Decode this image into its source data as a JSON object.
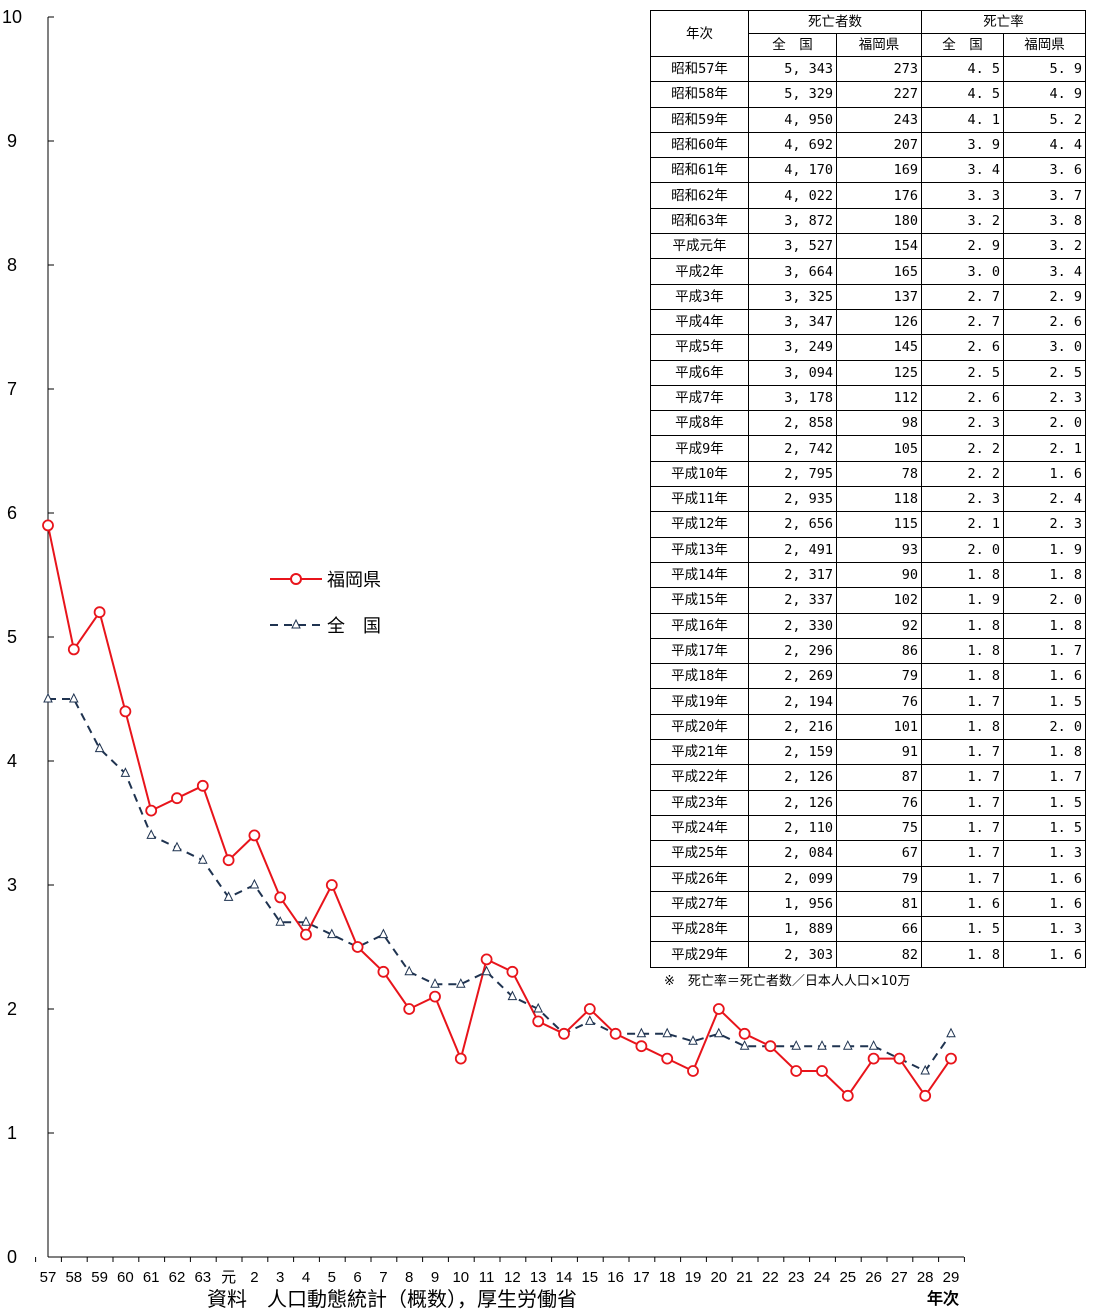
{
  "chart_data": {
    "type": "line",
    "ylim": [
      0,
      10
    ],
    "yticks": [
      "0",
      "1",
      "2",
      "3",
      "4",
      "5",
      "6",
      "7",
      "8",
      "9",
      "10"
    ],
    "categories": [
      "57",
      "58",
      "59",
      "60",
      "61",
      "62",
      "63",
      "元",
      "2",
      "3",
      "4",
      "5",
      "6",
      "7",
      "8",
      "9",
      "10",
      "11",
      "12",
      "13",
      "14",
      "15",
      "16",
      "17",
      "18",
      "19",
      "20",
      "21",
      "22",
      "23",
      "24",
      "25",
      "26",
      "27",
      "28",
      "29"
    ],
    "series": [
      {
        "name": "福岡県",
        "color": "#e8141b",
        "style": "solid",
        "marker": "circle",
        "values": [
          5.9,
          4.9,
          5.2,
          4.4,
          3.6,
          3.7,
          3.8,
          3.2,
          3.4,
          2.9,
          2.6,
          3.0,
          2.5,
          2.3,
          2.0,
          2.1,
          1.6,
          2.4,
          2.3,
          1.9,
          1.8,
          2.0,
          1.8,
          1.7,
          1.6,
          1.5,
          2.0,
          1.8,
          1.7,
          1.5,
          1.5,
          1.3,
          1.6,
          1.6,
          1.3,
          1.6
        ]
      },
      {
        "name": "全　国",
        "color": "#1f3350",
        "style": "dashed",
        "marker": "triangle",
        "values": [
          4.5,
          4.5,
          4.1,
          3.9,
          3.4,
          3.3,
          3.2,
          2.9,
          3.0,
          2.7,
          2.7,
          2.6,
          2.5,
          2.6,
          2.3,
          2.2,
          2.2,
          2.3,
          2.1,
          2.0,
          1.8,
          1.9,
          1.8,
          1.8,
          1.8,
          1.74,
          1.8,
          1.7,
          1.7,
          1.7,
          1.7,
          1.7,
          1.7,
          1.6,
          1.5,
          1.8
        ]
      }
    ],
    "xlabel": "年次",
    "source": "資料　人口動態統計（概数），厚生労働省",
    "legend_position": "center-left"
  },
  "table": {
    "header_year": "年次",
    "header_deaths": "死亡者数",
    "header_rate": "死亡率",
    "sub_national": "全　国",
    "sub_fukuoka": "福岡県",
    "rows": [
      [
        "昭和57年",
        "5, 343",
        "273",
        "4. 5",
        "5. 9"
      ],
      [
        "昭和58年",
        "5, 329",
        "227",
        "4. 5",
        "4. 9"
      ],
      [
        "昭和59年",
        "4, 950",
        "243",
        "4. 1",
        "5. 2"
      ],
      [
        "昭和60年",
        "4, 692",
        "207",
        "3. 9",
        "4. 4"
      ],
      [
        "昭和61年",
        "4, 170",
        "169",
        "3. 4",
        "3. 6"
      ],
      [
        "昭和62年",
        "4, 022",
        "176",
        "3. 3",
        "3. 7"
      ],
      [
        "昭和63年",
        "3, 872",
        "180",
        "3. 2",
        "3. 8"
      ],
      [
        "平成元年",
        "3, 527",
        "154",
        "2. 9",
        "3. 2"
      ],
      [
        "平成2年",
        "3, 664",
        "165",
        "3. 0",
        "3. 4"
      ],
      [
        "平成3年",
        "3, 325",
        "137",
        "2. 7",
        "2. 9"
      ],
      [
        "平成4年",
        "3, 347",
        "126",
        "2. 7",
        "2. 6"
      ],
      [
        "平成5年",
        "3, 249",
        "145",
        "2. 6",
        "3. 0"
      ],
      [
        "平成6年",
        "3, 094",
        "125",
        "2. 5",
        "2. 5"
      ],
      [
        "平成7年",
        "3, 178",
        "112",
        "2. 6",
        "2. 3"
      ],
      [
        "平成8年",
        "2, 858",
        "98",
        "2. 3",
        "2. 0"
      ],
      [
        "平成9年",
        "2, 742",
        "105",
        "2. 2",
        "2. 1"
      ],
      [
        "平成10年",
        "2, 795",
        "78",
        "2. 2",
        "1. 6"
      ],
      [
        "平成11年",
        "2, 935",
        "118",
        "2. 3",
        "2. 4"
      ],
      [
        "平成12年",
        "2, 656",
        "115",
        "2. 1",
        "2. 3"
      ],
      [
        "平成13年",
        "2, 491",
        "93",
        "2. 0",
        "1. 9"
      ],
      [
        "平成14年",
        "2, 317",
        "90",
        "1. 8",
        "1. 8"
      ],
      [
        "平成15年",
        "2, 337",
        "102",
        "1. 9",
        "2. 0"
      ],
      [
        "平成16年",
        "2, 330",
        "92",
        "1. 8",
        "1. 8"
      ],
      [
        "平成17年",
        "2, 296",
        "86",
        "1. 8",
        "1. 7"
      ],
      [
        "平成18年",
        "2, 269",
        "79",
        "1. 8",
        "1. 6"
      ],
      [
        "平成19年",
        "2, 194",
        "76",
        "1. 7",
        "1. 5"
      ],
      [
        "平成20年",
        "2, 216",
        "101",
        "1. 8",
        "2. 0"
      ],
      [
        "平成21年",
        "2, 159",
        "91",
        "1. 7",
        "1. 8"
      ],
      [
        "平成22年",
        "2, 126",
        "87",
        "1. 7",
        "1. 7"
      ],
      [
        "平成23年",
        "2, 126",
        "76",
        "1. 7",
        "1. 5"
      ],
      [
        "平成24年",
        "2, 110",
        "75",
        "1. 7",
        "1. 5"
      ],
      [
        "平成25年",
        "2, 084",
        "67",
        "1. 7",
        "1. 3"
      ],
      [
        "平成26年",
        "2, 099",
        "79",
        "1. 7",
        "1. 6"
      ],
      [
        "平成27年",
        "1, 956",
        "81",
        "1. 6",
        "1. 6"
      ],
      [
        "平成28年",
        "1, 889",
        "66",
        "1. 5",
        "1. 3"
      ],
      [
        "平成29年",
        "2, 303",
        "82",
        "1. 8",
        "1. 6"
      ]
    ],
    "note": "※　死亡率＝死亡者数／日本人人口×10万"
  }
}
